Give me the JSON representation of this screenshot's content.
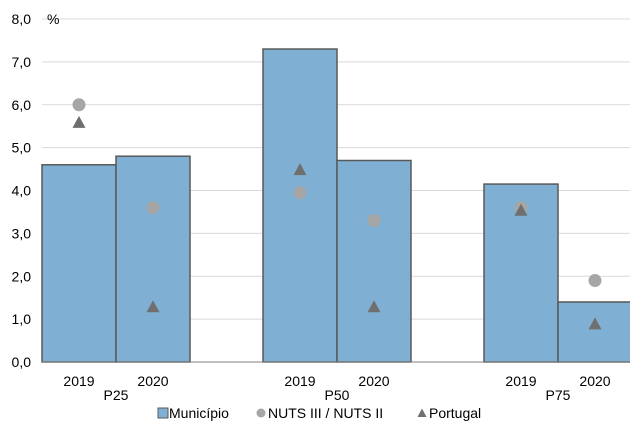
{
  "chart_data": {
    "type": "bar",
    "unit_label": "%",
    "ylim": [
      0,
      8
    ],
    "yticks": [
      "0,0",
      "1,0",
      "2,0",
      "3,0",
      "4,0",
      "5,0",
      "6,0",
      "7,0",
      "8,0"
    ],
    "grid": true,
    "legend_position": "bottom",
    "groups": [
      {
        "label": "P25",
        "bars": [
          {
            "year": "2019",
            "municipio": 4.6,
            "nuts": 6.0,
            "portugal": 5.6
          },
          {
            "year": "2020",
            "municipio": 4.8,
            "nuts": 3.6,
            "portugal": 1.3
          }
        ]
      },
      {
        "label": "P50",
        "bars": [
          {
            "year": "2019",
            "municipio": 7.3,
            "nuts": 3.95,
            "portugal": 4.5
          },
          {
            "year": "2020",
            "municipio": 4.7,
            "nuts": 3.3,
            "portugal": 1.3
          }
        ]
      },
      {
        "label": "P75",
        "bars": [
          {
            "year": "2019",
            "municipio": 4.15,
            "nuts": 3.6,
            "portugal": 3.55
          },
          {
            "year": "2020",
            "municipio": 1.4,
            "nuts": 1.9,
            "portugal": 0.9
          }
        ]
      }
    ],
    "series": [
      {
        "name": "Município",
        "marker": "bar",
        "color": "#7fb0d3"
      },
      {
        "name": "NUTS III / NUTS II",
        "marker": "circle",
        "color": "#a6a6a6"
      },
      {
        "name": "Portugal",
        "marker": "triangle",
        "color": "#6f6f6f"
      }
    ],
    "colors": {
      "bar_stroke": "#595959",
      "grid": "#d9d9d9",
      "axis": "#808080"
    }
  }
}
